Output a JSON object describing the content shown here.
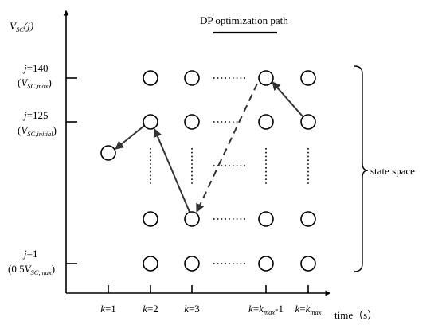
{
  "axes": {
    "y_label": {
      "main": "V",
      "sub": "SC",
      "tail": "(j)"
    },
    "x_label": "time（s）"
  },
  "legend": {
    "label": "DP optimization path"
  },
  "y_labels": {
    "j140": {
      "j_text": "j",
      "eq": "=140",
      "paren_open": "(",
      "v": "V",
      "sub": "SC,max",
      "paren_close": ")"
    },
    "j125": {
      "j_text": "j",
      "eq": "=125",
      "paren_open": "(",
      "v": "V",
      "sub": "SC,initial",
      "paren_close": ")"
    },
    "j1": {
      "j_text": "j",
      "eq": "=1",
      "paren_open": "(0.5",
      "v": "V",
      "sub": "SC,max",
      "paren_close": ")"
    }
  },
  "x_labels": {
    "k1": {
      "k": "k",
      "rest": "=1"
    },
    "k2": {
      "k": "k",
      "rest": "=2"
    },
    "k3": {
      "k": "k",
      "rest": "=3"
    },
    "kmax1": {
      "k": "k",
      "eq": "=",
      "k2": "k",
      "sub": "max",
      "rest": "-1"
    },
    "kmax": {
      "k": "k",
      "eq": "=",
      "k2": "k",
      "sub": "max"
    }
  },
  "state_space_label": "state space"
}
